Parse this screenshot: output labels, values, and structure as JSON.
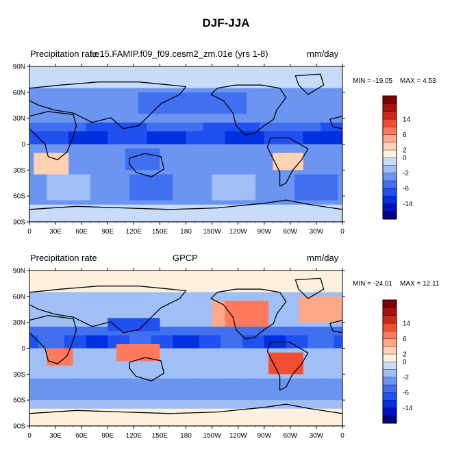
{
  "main_title": "DJF-JJA",
  "colors": [
    "#000080",
    "#0010c0",
    "#0030e0",
    "#2050f0",
    "#4070f0",
    "#6b95f0",
    "#a0bff5",
    "#c8dcf8",
    "#fff1de",
    "#ffd2b4",
    "#ffa888",
    "#ff7a5c",
    "#f05030",
    "#d02818",
    "#aa1008",
    "#800000"
  ],
  "colorbar_ticks": [
    "14",
    "6",
    "2",
    "0",
    "-2",
    "-6",
    "-14"
  ],
  "chart_data": [
    {
      "type": "heatmap",
      "name": "model",
      "left_label": "Precipitation rate",
      "center_label": "f.e15.FAMIP.f09_f09.cesm2_zm.01e (yrs 1-8)",
      "right_label": "mm/day",
      "min_label": "MIN = -19.05",
      "max_label": "MAX =   4.53",
      "x_ticks": [
        "0",
        "30E",
        "60E",
        "90E",
        "120E",
        "150E",
        "180",
        "150W",
        "120W",
        "90W",
        "60W",
        "30W",
        "0"
      ],
      "y_ticks": [
        "90N",
        "60N",
        "30N",
        "0",
        "30S",
        "60S",
        "90S"
      ]
    },
    {
      "type": "heatmap",
      "name": "obs",
      "left_label": "Precipitation rate",
      "center_label": "GPCP",
      "right_label": "mm/day",
      "min_label": "MIN = -24.01",
      "max_label": "MAX = 12.11",
      "x_ticks": [
        "0",
        "30E",
        "60E",
        "90E",
        "120E",
        "150E",
        "180",
        "150W",
        "120W",
        "90W",
        "60W",
        "30W",
        "0"
      ],
      "y_ticks": [
        "90N",
        "60N",
        "30N",
        "0",
        "30S",
        "60S",
        "90S"
      ]
    }
  ]
}
